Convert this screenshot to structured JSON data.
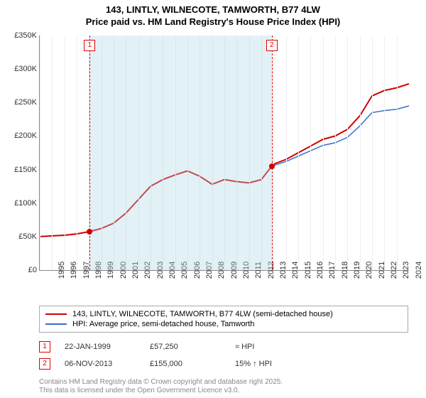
{
  "title_line1": "143, LINTLY, WILNECOTE, TAMWORTH, B77 4LW",
  "title_line2": "Price paid vs. HM Land Registry's House Price Index (HPI)",
  "chart": {
    "type": "line",
    "background_color": "#ffffff",
    "shade_color": "rgba(173,216,230,0.35)",
    "x_start": 1995,
    "x_end": 2025,
    "x_years": [
      1995,
      1996,
      1997,
      1998,
      1999,
      2000,
      2001,
      2002,
      2003,
      2004,
      2005,
      2006,
      2007,
      2008,
      2009,
      2010,
      2011,
      2012,
      2013,
      2014,
      2015,
      2016,
      2017,
      2018,
      2019,
      2020,
      2021,
      2022,
      2023,
      2024
    ],
    "y_min": 0,
    "y_max": 350000,
    "y_step": 50000,
    "y_ticks": [
      "£0",
      "£50K",
      "£100K",
      "£150K",
      "£200K",
      "£250K",
      "£300K",
      "£350K"
    ],
    "series": [
      {
        "name": "143, LINTLY, WILNECOTE, TAMWORTH, B77 4LW (semi-detached house)",
        "color": "#d00000",
        "width": 2,
        "points": [
          [
            1995,
            50000
          ],
          [
            1996,
            51000
          ],
          [
            1997,
            52000
          ],
          [
            1998,
            54000
          ],
          [
            1999,
            57250
          ],
          [
            2000,
            62000
          ],
          [
            2001,
            70000
          ],
          [
            2002,
            85000
          ],
          [
            2003,
            105000
          ],
          [
            2004,
            125000
          ],
          [
            2005,
            135000
          ],
          [
            2006,
            142000
          ],
          [
            2007,
            148000
          ],
          [
            2008,
            140000
          ],
          [
            2009,
            128000
          ],
          [
            2010,
            135000
          ],
          [
            2011,
            132000
          ],
          [
            2012,
            130000
          ],
          [
            2013,
            135000
          ],
          [
            2013.85,
            155000
          ],
          [
            2014,
            158000
          ],
          [
            2015,
            165000
          ],
          [
            2016,
            175000
          ],
          [
            2017,
            185000
          ],
          [
            2018,
            195000
          ],
          [
            2019,
            200000
          ],
          [
            2020,
            210000
          ],
          [
            2021,
            230000
          ],
          [
            2022,
            260000
          ],
          [
            2023,
            268000
          ],
          [
            2024,
            272000
          ],
          [
            2025,
            278000
          ]
        ]
      },
      {
        "name": "HPI: Average price, semi-detached house, Tamworth",
        "color": "#3a6fc9",
        "width": 1.5,
        "points": [
          [
            2013.85,
            155000
          ],
          [
            2014,
            156000
          ],
          [
            2015,
            162000
          ],
          [
            2016,
            170000
          ],
          [
            2017,
            178000
          ],
          [
            2018,
            186000
          ],
          [
            2019,
            190000
          ],
          [
            2020,
            198000
          ],
          [
            2021,
            215000
          ],
          [
            2022,
            235000
          ],
          [
            2023,
            238000
          ],
          [
            2024,
            240000
          ],
          [
            2025,
            245000
          ]
        ]
      }
    ],
    "markers": [
      {
        "num": "1",
        "year": 1999.06,
        "value": 57250
      },
      {
        "num": "2",
        "year": 2013.85,
        "value": 155000
      }
    ],
    "shade_start": 1999.06,
    "shade_end": 2013.85
  },
  "legend": {
    "items": [
      {
        "color": "#d00000",
        "label": "143, LINTLY, WILNECOTE, TAMWORTH, B77 4LW (semi-detached house)"
      },
      {
        "color": "#3a6fc9",
        "label": "HPI: Average price, semi-detached house, Tamworth"
      }
    ]
  },
  "annotations": [
    {
      "num": "1",
      "date": "22-JAN-1999",
      "price": "£57,250",
      "delta": "≈ HPI"
    },
    {
      "num": "2",
      "date": "06-NOV-2013",
      "price": "£155,000",
      "delta": "15% ↑ HPI"
    }
  ],
  "footer_line1": "Contains HM Land Registry data © Crown copyright and database right 2025.",
  "footer_line2": "This data is licensed under the Open Government Licence v3.0."
}
